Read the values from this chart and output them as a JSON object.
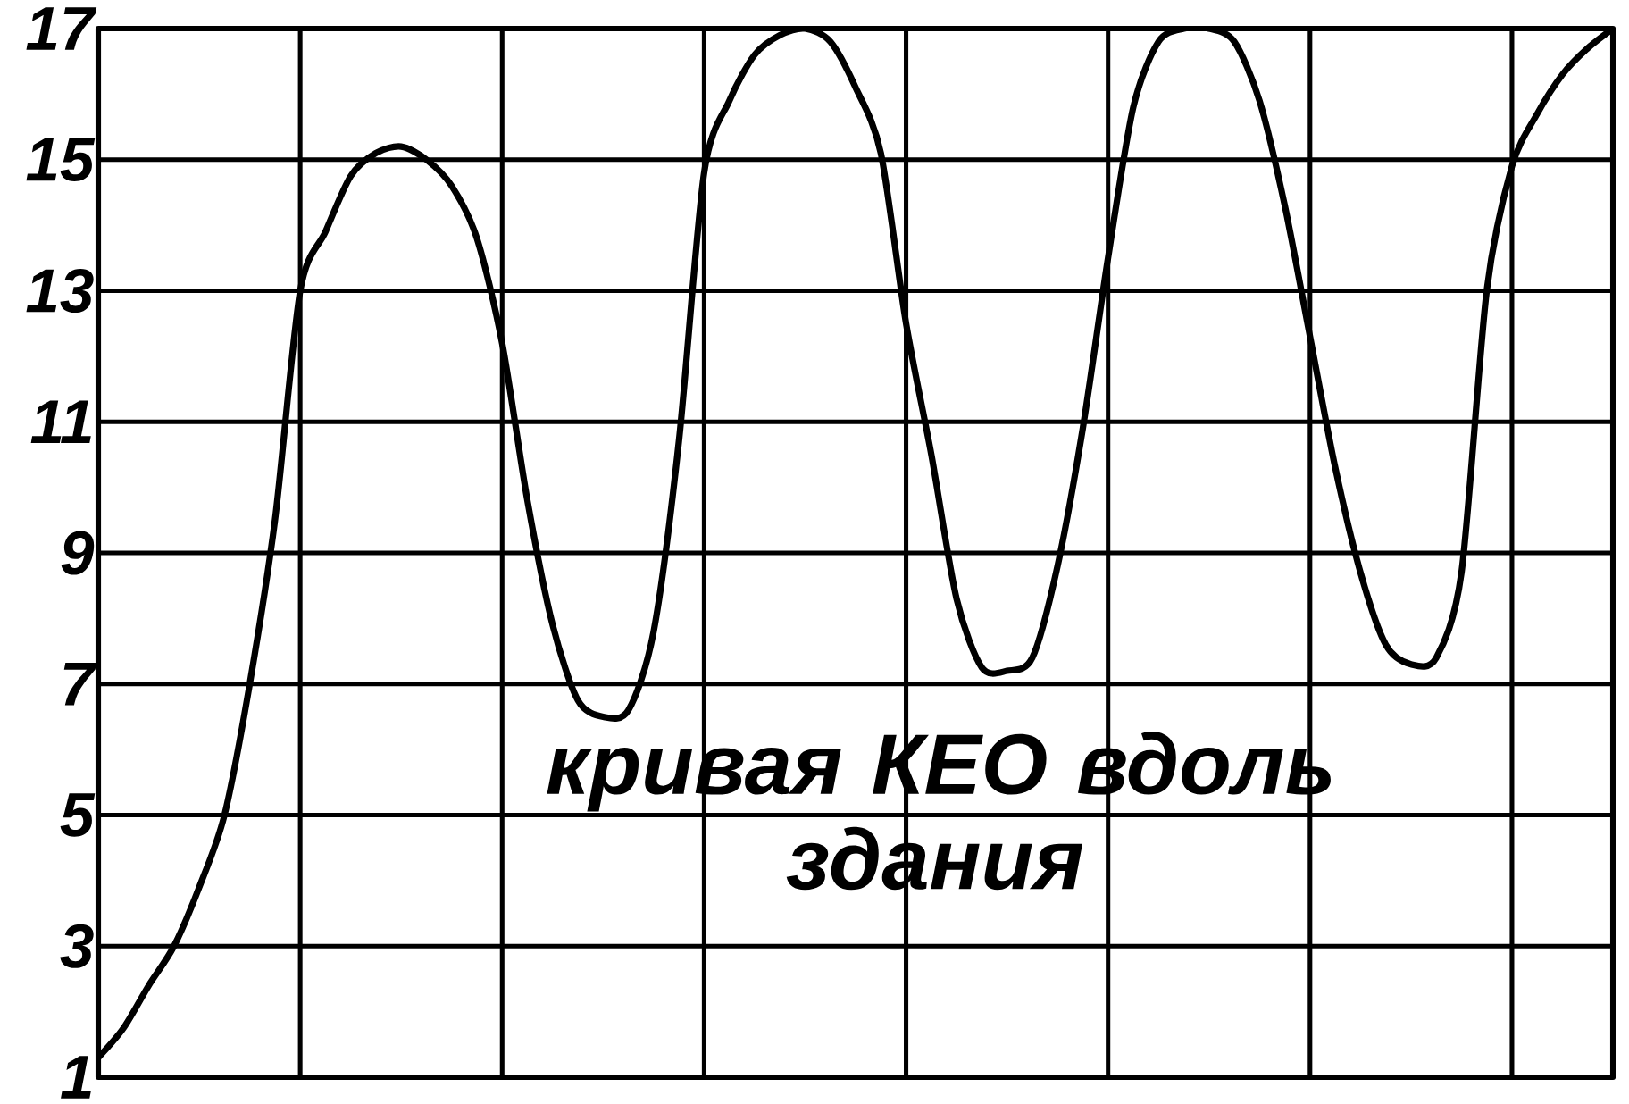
{
  "chart_data": {
    "type": "line",
    "color": "#000000",
    "marker": "none",
    "line_style": "solid",
    "grid": true,
    "tick_labels": "y",
    "categories": [
      null,
      null,
      null,
      null,
      null,
      null,
      null,
      null,
      null,
      null,
      null,
      null,
      null,
      null,
      null,
      null,
      null,
      null,
      null,
      null,
      null,
      null,
      null,
      null,
      null,
      null,
      null,
      null,
      null,
      null,
      null,
      null,
      null,
      null,
      null,
      null,
      null,
      null,
      null,
      null,
      null,
      null,
      null,
      null,
      null,
      null,
      null,
      null,
      null,
      null,
      null,
      null,
      null,
      null,
      null,
      null,
      null,
      null,
      null,
      null,
      null
    ],
    "values": [
      1.3,
      1.75,
      2.4,
      3.0,
      3.9,
      5.0,
      7.0,
      9.5,
      13.0,
      13.9,
      14.75,
      15.1,
      15.2,
      15.0,
      14.6,
      13.8,
      12.2,
      9.8,
      7.9,
      6.75,
      6.5,
      6.6,
      7.8,
      10.7,
      14.8,
      15.9,
      16.6,
      16.9,
      17.0,
      16.8,
      16.1,
      15.1,
      12.5,
      10.5,
      8.3,
      7.25,
      7.2,
      7.4,
      8.8,
      10.9,
      13.5,
      15.8,
      16.8,
      17.0,
      17.0,
      16.8,
      15.9,
      14.3,
      12.3,
      10.3,
      8.7,
      7.6,
      7.3,
      7.4,
      8.7,
      13.0,
      14.9,
      15.7,
      16.3,
      16.7,
      17.0
    ],
    "ylim": [
      1,
      17
    ],
    "yticks": [
      1,
      3,
      5,
      7,
      9,
      11,
      13,
      15,
      17
    ],
    "annotations": [
      "кривая КЕО вдоль здания"
    ]
  }
}
